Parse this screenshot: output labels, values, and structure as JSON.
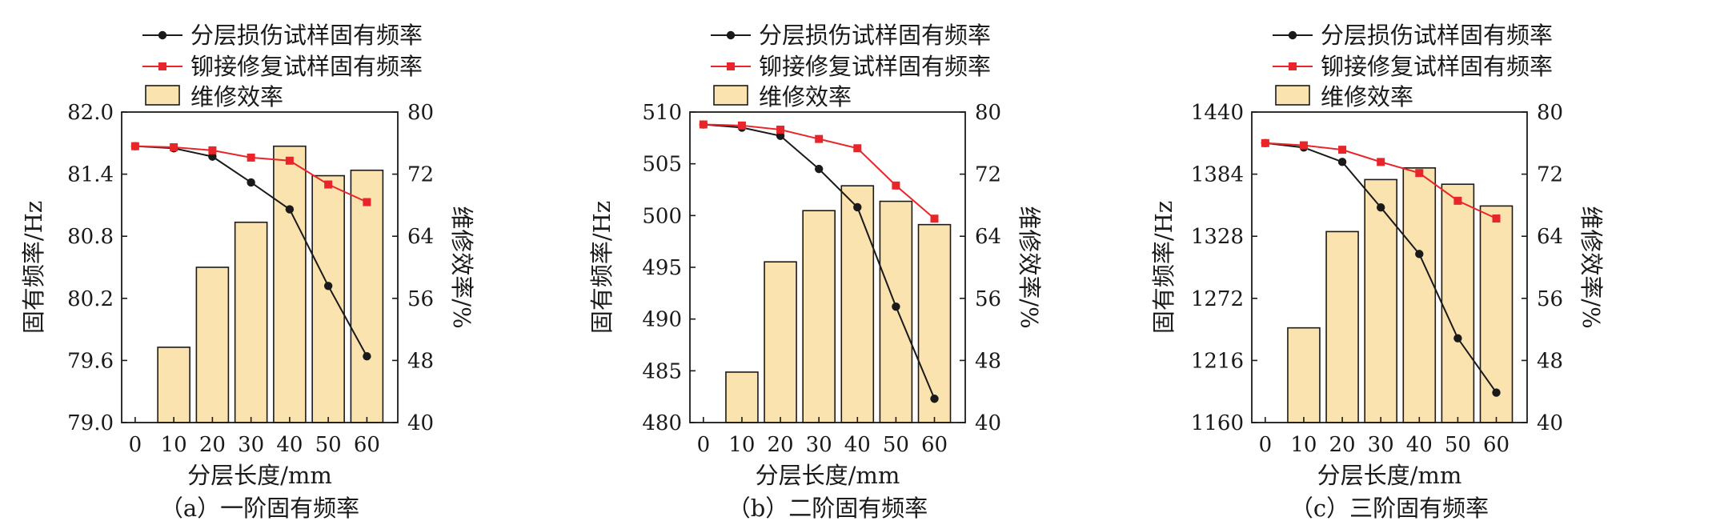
{
  "legend": {
    "series_damaged": "分层损伤试样固有频率",
    "series_repaired": "铆接修复试样固有频率",
    "bars": "维修效率"
  },
  "colors": {
    "damaged": "#1a1a1a",
    "repaired": "#e8262a",
    "bar_fill": "#fbe3b0",
    "bar_stroke": "#1a1a1a",
    "axis": "#1a1a1a"
  },
  "chart_data": [
    {
      "type": "bar+line",
      "caption": "（a）一阶固有频率",
      "xlabel": "分层长度/mm",
      "ylabel": "固有频率/Hz",
      "y2label": "维修效率/%",
      "x": [
        0,
        10,
        20,
        30,
        40,
        50,
        60
      ],
      "x_ticks": [
        "0",
        "10",
        "20",
        "30",
        "40",
        "50",
        "60"
      ],
      "ylim": [
        79.0,
        82.0
      ],
      "y_ticks": [
        "79.0",
        "79.6",
        "80.2",
        "80.8",
        "81.4",
        "82.0"
      ],
      "y2lim": [
        40,
        80
      ],
      "y2_ticks": [
        "40",
        "48",
        "56",
        "64",
        "72",
        "80"
      ],
      "grid": false,
      "legend_position": "top-left",
      "series": [
        {
          "name": "分层损伤试样固有频率",
          "axis": "left",
          "values": [
            81.67,
            81.65,
            81.57,
            81.32,
            81.06,
            80.32,
            79.64
          ]
        },
        {
          "name": "铆接修复试样固有频率",
          "axis": "left",
          "values": [
            81.67,
            81.66,
            81.63,
            81.56,
            81.53,
            81.3,
            81.13
          ]
        },
        {
          "name": "维修效率",
          "axis": "right",
          "bar": true,
          "values": [
            null,
            49.7,
            60.0,
            65.8,
            75.6,
            71.8,
            72.5
          ]
        }
      ]
    },
    {
      "type": "bar+line",
      "caption": "（b）二阶固有频率",
      "xlabel": "分层长度/mm",
      "ylabel": "固有频率/Hz",
      "y2label": "维修效率/%",
      "x": [
        0,
        10,
        20,
        30,
        40,
        50,
        60
      ],
      "x_ticks": [
        "0",
        "10",
        "20",
        "30",
        "40",
        "50",
        "60"
      ],
      "ylim": [
        480,
        510
      ],
      "y_ticks": [
        "480",
        "485",
        "490",
        "495",
        "500",
        "505",
        "510"
      ],
      "y2lim": [
        40,
        80
      ],
      "y2_ticks": [
        "40",
        "48",
        "56",
        "64",
        "72",
        "80"
      ],
      "grid": false,
      "legend_position": "top-left",
      "series": [
        {
          "name": "分层损伤试样固有频率",
          "axis": "left",
          "values": [
            508.8,
            508.5,
            507.7,
            504.5,
            500.8,
            491.2,
            482.3
          ]
        },
        {
          "name": "铆接修复试样固有频率",
          "axis": "left",
          "values": [
            508.8,
            508.7,
            508.3,
            507.4,
            506.5,
            502.9,
            499.7
          ]
        },
        {
          "name": "维修效率",
          "axis": "right",
          "bar": true,
          "values": [
            null,
            46.5,
            60.7,
            67.3,
            70.5,
            68.5,
            65.5
          ]
        }
      ]
    },
    {
      "type": "bar+line",
      "caption": "（c）三阶固有频率",
      "xlabel": "分层长度/mm",
      "ylabel": "固有频率/Hz",
      "y2label": "维修效率/%",
      "x": [
        0,
        10,
        20,
        30,
        40,
        50,
        60
      ],
      "x_ticks": [
        "0",
        "10",
        "20",
        "30",
        "40",
        "50",
        "60"
      ],
      "ylim": [
        1160,
        1440
      ],
      "y_ticks": [
        "1160",
        "1216",
        "1272",
        "1328",
        "1384",
        "1440"
      ],
      "y2lim": [
        40,
        80
      ],
      "y2_ticks": [
        "40",
        "48",
        "56",
        "64",
        "72",
        "80"
      ],
      "grid": false,
      "legend_position": "top-left",
      "series": [
        {
          "name": "分层损伤试样固有频率",
          "axis": "left",
          "values": [
            1412,
            1408,
            1395,
            1354,
            1312,
            1236,
            1187
          ]
        },
        {
          "name": "铆接修复试样固有频率",
          "axis": "left",
          "values": [
            1412,
            1410,
            1406,
            1395,
            1385,
            1360,
            1344
          ]
        },
        {
          "name": "维修效率",
          "axis": "right",
          "bar": true,
          "values": [
            null,
            52.2,
            64.6,
            71.3,
            72.8,
            70.7,
            67.9
          ]
        }
      ]
    }
  ]
}
